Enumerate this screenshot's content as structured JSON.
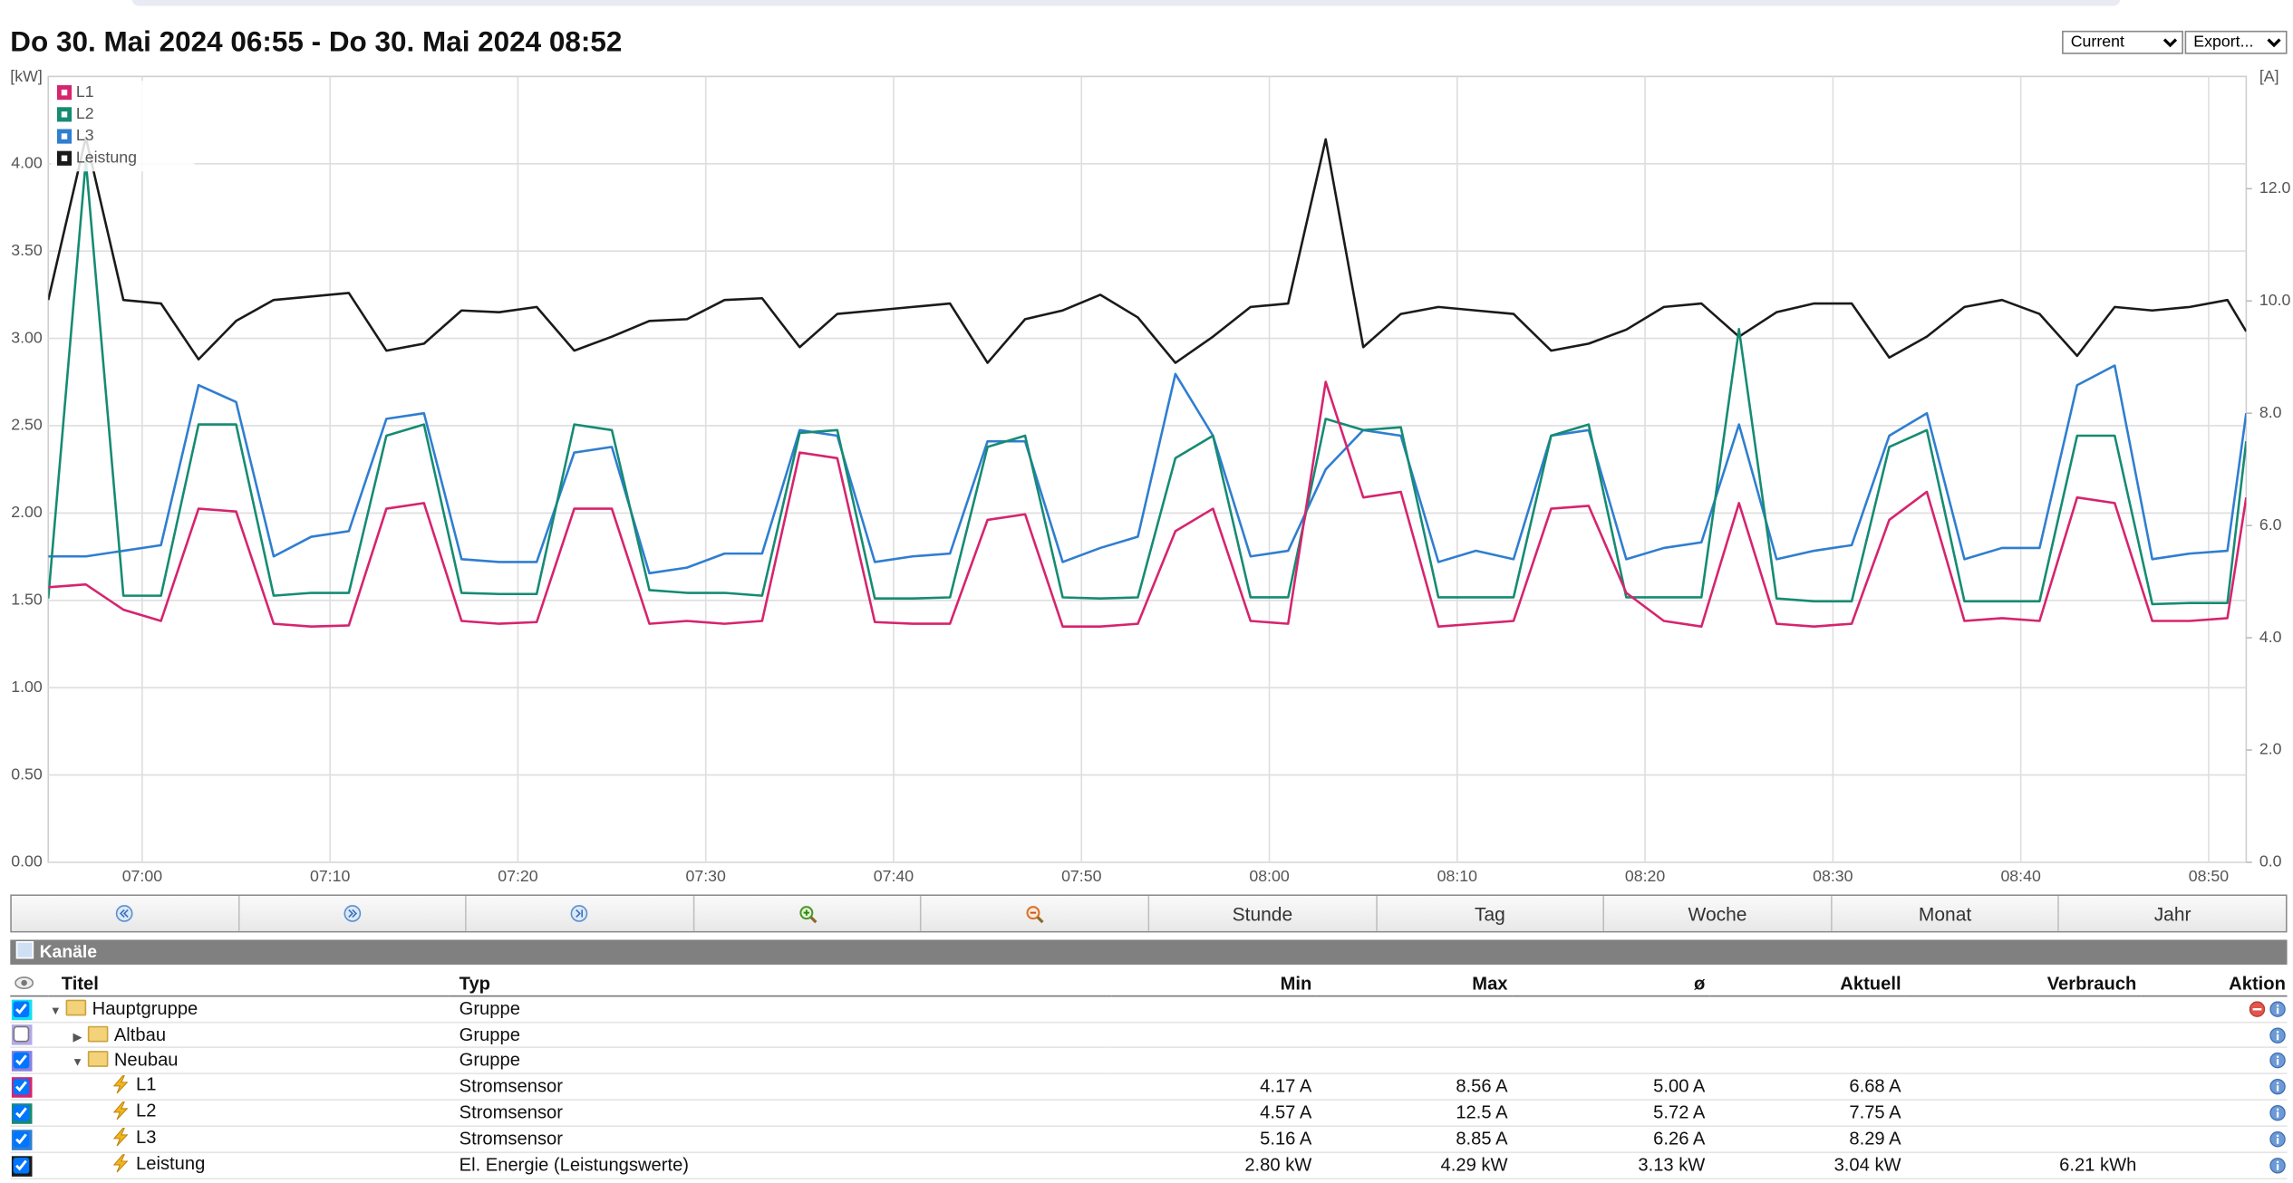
{
  "header": {
    "title": "Do 30. Mai 2024 06:55 - Do 30. Mai 2024 08:52",
    "selects": [
      "Current",
      "Export..."
    ]
  },
  "chart_data": {
    "type": "line",
    "ylabel": "[kW]",
    "y2label": "[A]",
    "x": [
      "06:55",
      "06:57",
      "06:59",
      "07:01",
      "07:03",
      "07:05",
      "07:07",
      "07:09",
      "07:11",
      "07:13",
      "07:15",
      "07:17",
      "07:19",
      "07:21",
      "07:23",
      "07:25",
      "07:27",
      "07:29",
      "07:31",
      "07:33",
      "07:35",
      "07:37",
      "07:39",
      "07:41",
      "07:43",
      "07:45",
      "07:47",
      "07:49",
      "07:51",
      "07:53",
      "07:55",
      "07:57",
      "07:59",
      "08:01",
      "08:03",
      "08:05",
      "08:07",
      "08:09",
      "08:11",
      "08:13",
      "08:15",
      "08:17",
      "08:19",
      "08:21",
      "08:23",
      "08:25",
      "08:27",
      "08:29",
      "08:31",
      "08:33",
      "08:35",
      "08:37",
      "08:39",
      "08:41",
      "08:43",
      "08:45",
      "08:47",
      "08:49",
      "08:51",
      "08:52"
    ],
    "series": [
      {
        "name": "L1",
        "color": "#d6246e",
        "axis": "y2",
        "values": [
          4.9,
          4.95,
          4.5,
          4.3,
          6.3,
          6.25,
          4.25,
          4.2,
          4.22,
          6.3,
          6.4,
          4.3,
          4.25,
          4.28,
          6.3,
          6.3,
          4.25,
          4.3,
          4.25,
          4.3,
          7.3,
          7.2,
          4.28,
          4.25,
          4.25,
          6.1,
          6.2,
          4.2,
          4.2,
          4.25,
          5.9,
          6.3,
          4.3,
          4.25,
          8.56,
          6.5,
          6.6,
          4.2,
          4.25,
          4.3,
          6.3,
          6.35,
          4.8,
          4.3,
          4.2,
          6.4,
          4.25,
          4.2,
          4.25,
          6.1,
          6.6,
          4.3,
          4.35,
          4.3,
          6.5,
          6.4,
          4.3,
          4.3,
          4.35,
          6.5
        ]
      },
      {
        "name": "L2",
        "color": "#168b73",
        "axis": "y2",
        "values": [
          4.7,
          12.5,
          4.75,
          4.75,
          7.8,
          7.8,
          4.75,
          4.8,
          4.8,
          7.6,
          7.8,
          4.8,
          4.78,
          4.78,
          7.8,
          7.7,
          4.85,
          4.8,
          4.8,
          4.75,
          7.65,
          7.7,
          4.7,
          4.7,
          4.72,
          7.4,
          7.6,
          4.72,
          4.7,
          4.72,
          7.2,
          7.6,
          4.72,
          4.72,
          7.9,
          7.7,
          7.75,
          4.72,
          4.72,
          4.72,
          7.6,
          7.8,
          4.72,
          4.72,
          4.72,
          9.5,
          4.7,
          4.65,
          4.65,
          7.4,
          7.7,
          4.65,
          4.65,
          4.65,
          7.6,
          7.6,
          4.6,
          4.62,
          4.62,
          7.5
        ]
      },
      {
        "name": "L3",
        "color": "#2f7ed0",
        "axis": "y2",
        "values": [
          5.45,
          5.45,
          5.55,
          5.65,
          8.5,
          8.2,
          5.45,
          5.8,
          5.9,
          7.9,
          8.0,
          5.4,
          5.35,
          5.35,
          7.3,
          7.4,
          5.15,
          5.25,
          5.5,
          5.5,
          7.7,
          7.6,
          5.35,
          5.45,
          5.5,
          7.5,
          7.5,
          5.35,
          5.6,
          5.8,
          8.7,
          7.6,
          5.45,
          5.55,
          7.0,
          7.7,
          7.6,
          5.35,
          5.55,
          5.4,
          7.6,
          7.7,
          5.4,
          5.6,
          5.7,
          7.8,
          5.4,
          5.55,
          5.65,
          7.6,
          8.0,
          5.4,
          5.6,
          5.6,
          8.5,
          8.85,
          5.4,
          5.5,
          5.55,
          8.0
        ]
      },
      {
        "name": "Leistung",
        "color": "#1a1a1a",
        "values": [
          3.22,
          4.15,
          3.22,
          3.2,
          2.88,
          3.1,
          3.22,
          3.24,
          3.26,
          2.93,
          2.97,
          3.16,
          3.15,
          3.18,
          2.93,
          3.01,
          3.1,
          3.11,
          3.22,
          3.23,
          2.95,
          3.14,
          3.16,
          3.18,
          3.2,
          2.86,
          3.11,
          3.16,
          3.25,
          3.12,
          2.86,
          3.01,
          3.18,
          3.2,
          4.14,
          2.95,
          3.14,
          3.18,
          3.16,
          3.14,
          2.93,
          2.97,
          3.05,
          3.18,
          3.2,
          3.01,
          3.15,
          3.2,
          3.2,
          2.89,
          3.01,
          3.18,
          3.22,
          3.14,
          2.9,
          3.18,
          3.16,
          3.18,
          3.22,
          3.04
        ]
      }
    ],
    "xlim": [
      "06:55",
      "08:52"
    ],
    "xticks": [
      "07:00",
      "07:10",
      "07:20",
      "07:30",
      "07:40",
      "07:50",
      "08:00",
      "08:10",
      "08:20",
      "08:30",
      "08:40",
      "08:50"
    ],
    "ylim": [
      0,
      4.5
    ],
    "yticks": [
      {
        "value": 0,
        "label": "0.00"
      },
      {
        "value": 0.5,
        "label": "0.50"
      },
      {
        "value": 1,
        "label": "1.00"
      },
      {
        "value": 1.5,
        "label": "1.50"
      },
      {
        "value": 2,
        "label": "2.00"
      },
      {
        "value": 2.5,
        "label": "2.50"
      },
      {
        "value": 3,
        "label": "3.00"
      },
      {
        "value": 3.5,
        "label": "3.50"
      },
      {
        "value": 4,
        "label": "4.00"
      }
    ],
    "y2lim": [
      0,
      14
    ],
    "y2ticks": [
      {
        "value": 0,
        "label": "0.0"
      },
      {
        "value": 2,
        "label": "2.0"
      },
      {
        "value": 4,
        "label": "4.0"
      },
      {
        "value": 6,
        "label": "6.0"
      },
      {
        "value": 8,
        "label": "8.0"
      },
      {
        "value": 10,
        "label": "10.0"
      },
      {
        "value": 12,
        "label": "12.0"
      }
    ],
    "grid": true,
    "legend": "upper left"
  },
  "toolbar": {
    "buttons": [
      "Stunde",
      "Tag",
      "Woche",
      "Monat",
      "Jahr"
    ]
  },
  "channels": {
    "title": "Kanäle",
    "columns": [
      "Titel",
      "Typ",
      "Min",
      "Max",
      "ø",
      "Aktuell",
      "Verbrauch",
      "Aktion"
    ],
    "rows": [
      {
        "title": "Hauptgruppe",
        "type": "Gruppe"
      },
      {
        "title": "Altbau",
        "type": "Gruppe"
      },
      {
        "title": "Neubau",
        "type": "Gruppe"
      },
      {
        "title": "L1",
        "type": "Stromsensor",
        "min": "4.17 A",
        "max": "8.56 A",
        "avg": "5.00 A",
        "current": "6.68 A"
      },
      {
        "title": "L2",
        "type": "Stromsensor",
        "min": "4.57 A",
        "max": "12.5 A",
        "avg": "5.72 A",
        "current": "7.75 A"
      },
      {
        "title": "L3",
        "type": "Stromsensor",
        "min": "5.16 A",
        "max": "8.85 A",
        "avg": "6.26 A",
        "current": "8.29 A"
      },
      {
        "title": "Leistung",
        "type": "El. Energie (Leistungswerte)",
        "min": "2.80 kW",
        "max": "4.29 kW",
        "avg": "3.13 kW",
        "current": "3.04 kW",
        "consumption": "6.21 kWh"
      }
    ]
  }
}
